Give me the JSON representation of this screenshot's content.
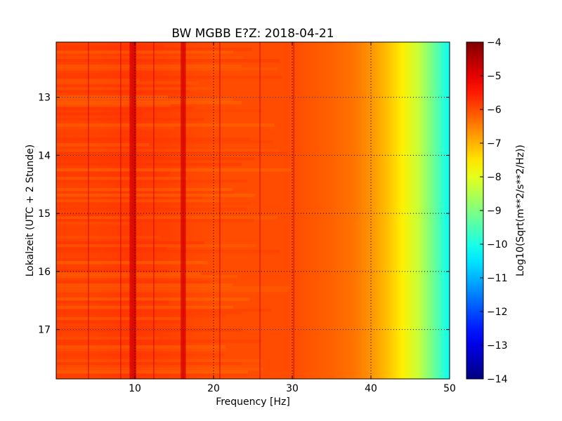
{
  "chart_data": {
    "type": "heatmap",
    "title": "BW MGBB E?Z: 2018-04-21",
    "xlabel": "Frequency [Hz]",
    "ylabel": "Lokalzeit (UTC + 2 Stunde)",
    "colorbar_label": "Log10(Sqrt(m**2/s**2/Hz))",
    "colormap": "jet",
    "xlim": [
      0,
      50
    ],
    "ylim": [
      17.85,
      12.05
    ],
    "y_inverted": true,
    "clim": [
      -14,
      -4
    ],
    "x_ticks": [
      10,
      20,
      30,
      40,
      50
    ],
    "y_ticks": [
      13,
      14,
      15,
      16,
      17
    ],
    "colorbar_ticks": [
      -4,
      -5,
      -6,
      -7,
      -8,
      -9,
      -10,
      -11,
      -12,
      -13,
      -14
    ],
    "grid": "dotted",
    "spectral_profile_hz": [
      0,
      5,
      10,
      15,
      20,
      25,
      30,
      35,
      38,
      40,
      42,
      44,
      46,
      48,
      50
    ],
    "spectral_profile_value": [
      -5.9,
      -5.9,
      -5.8,
      -5.9,
      -6.0,
      -6.0,
      -6.0,
      -6.2,
      -6.4,
      -6.7,
      -7.1,
      -7.6,
      -8.3,
      -9.2,
      -10.2
    ],
    "spectral_lines_hz": [
      4.1,
      8.2,
      9.5,
      9.8,
      10.0,
      12.4,
      16.0,
      16.3,
      20.8,
      25.9,
      30.2
    ]
  }
}
